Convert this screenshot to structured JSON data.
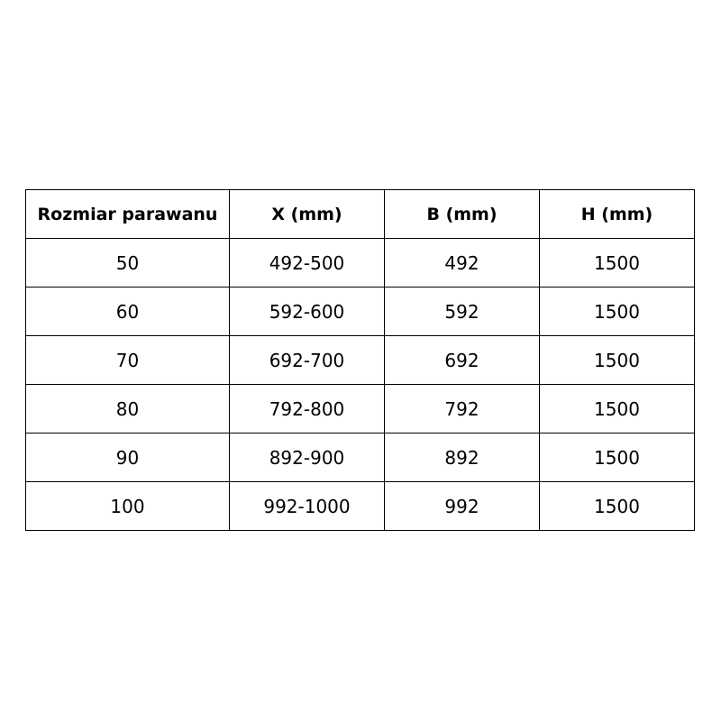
{
  "table": {
    "headers": [
      "Rozmiar parawanu",
      "X (mm)",
      "B (mm)",
      "H (mm)"
    ],
    "rows": [
      [
        "50",
        "492-500",
        "492",
        "1500"
      ],
      [
        "60",
        "592-600",
        "592",
        "1500"
      ],
      [
        "70",
        "692-700",
        "692",
        "1500"
      ],
      [
        "80",
        "792-800",
        "792",
        "1500"
      ],
      [
        "90",
        "892-900",
        "892",
        "1500"
      ],
      [
        "100",
        "992-1000",
        "992",
        "1500"
      ]
    ]
  }
}
